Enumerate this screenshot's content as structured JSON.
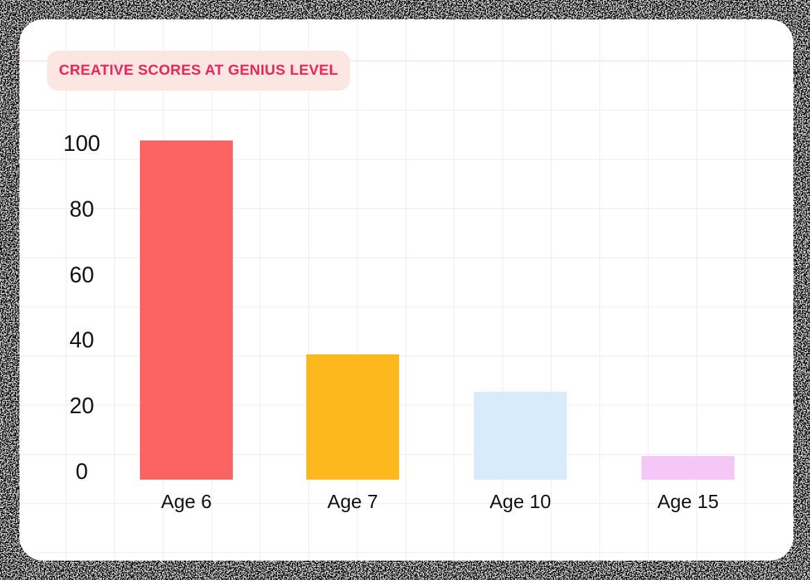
{
  "badge": {
    "label": "CREATIVE SCORES AT GENIUS LEVEL",
    "text_color": "#F4215B",
    "bg_color": "#FCE6E2"
  },
  "chart_data": {
    "type": "bar",
    "title": "CREATIVE SCORES AT GENIUS LEVEL",
    "categories": [
      "Age 6",
      "Age 7",
      "Age 10",
      "Age 15"
    ],
    "values": [
      100,
      37,
      26,
      7
    ],
    "bar_colors": [
      "#FB6363",
      "#FDB81E",
      "#D8EBFB",
      "#F5C6F8"
    ],
    "xlabel": "",
    "ylabel": "",
    "yticks": [
      100,
      80,
      60,
      40,
      20,
      0
    ],
    "ylim": [
      0,
      100
    ],
    "legend": "none",
    "grid": "decorative pink square grid on white card",
    "tick_color": "#121212",
    "background": "white rounded card over black static-noise frame"
  }
}
